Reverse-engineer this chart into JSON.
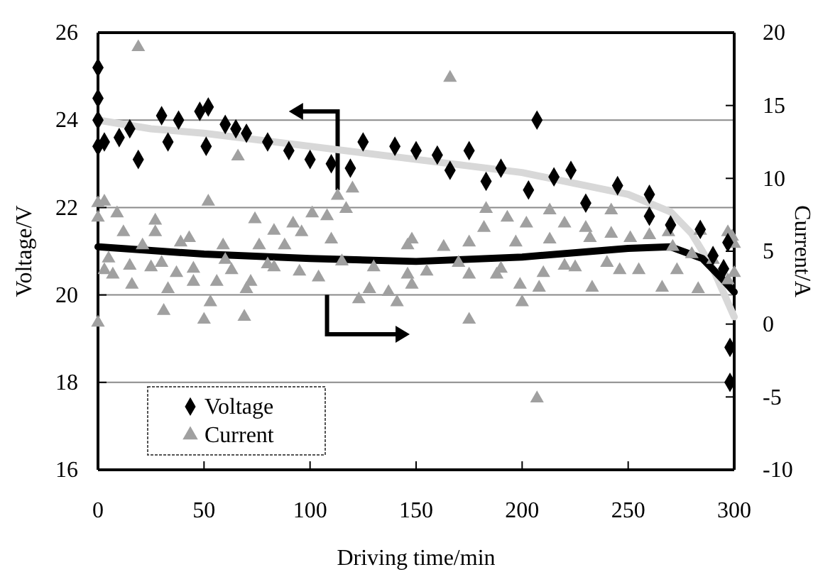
{
  "chart_data": {
    "type": "scatter",
    "xlabel": "Driving time/min",
    "ylabel": "Voltage/V",
    "y2label": "Current/A",
    "xlim": [
      0,
      300
    ],
    "xticks": [
      0,
      50,
      100,
      150,
      200,
      250,
      300
    ],
    "ylim": [
      16,
      26
    ],
    "yticks": [
      16,
      18,
      20,
      22,
      24,
      26
    ],
    "y2lim": [
      -10,
      20
    ],
    "y2ticks": [
      -10,
      -5,
      0,
      5,
      10,
      15,
      20
    ],
    "grid": "y",
    "legend": "bottom left",
    "series": [
      {
        "name": "Current",
        "marker": "triangle",
        "color": "#a0a0a0",
        "axis": "y2",
        "x": [
          0,
          0,
          0,
          3,
          9,
          52,
          27,
          74,
          66,
          101,
          113,
          120,
          108,
          92,
          96,
          117,
          3,
          7,
          16,
          25,
          33,
          31,
          37,
          45,
          50,
          53,
          56,
          63,
          70,
          69,
          72,
          83,
          104,
          123,
          128,
          137,
          148,
          141,
          146,
          175,
          188,
          199,
          200,
          208,
          220,
          233,
          246,
          266,
          273,
          283,
          297,
          183,
          193,
          202,
          213,
          220,
          230,
          242,
          242,
          251,
          260,
          269,
          284,
          297,
          148,
          163,
          175,
          182,
          197,
          213,
          232,
          271,
          21,
          39,
          43,
          59,
          76,
          88,
          83,
          110,
          146,
          12,
          27,
          19,
          166,
          207,
          175,
          300,
          300,
          299,
          5,
          15,
          30,
          45,
          60,
          80,
          95,
          115,
          130,
          155,
          170,
          190,
          210,
          225,
          240,
          255,
          280,
          290
        ],
        "values": [
          8.3,
          7.3,
          0.1,
          8.4,
          7.6,
          8.4,
          7.1,
          7.2,
          11.5,
          7.6,
          8.8,
          9.3,
          7.4,
          6.9,
          6.3,
          7.9,
          3.7,
          3.4,
          2.7,
          3.9,
          2.4,
          0.9,
          3.5,
          2.9,
          0.3,
          1.5,
          2.9,
          3.7,
          2.4,
          0.5,
          2.9,
          3.9,
          3.2,
          1.7,
          2.4,
          2.2,
          2.7,
          1.5,
          3.4,
          3.4,
          3.4,
          2.7,
          1.5,
          2.5,
          4.0,
          2.5,
          3.7,
          2.5,
          3.7,
          2.4,
          3.0,
          7.9,
          7.3,
          6.9,
          7.8,
          6.9,
          6.6,
          7.8,
          6.2,
          5.9,
          6.1,
          6.3,
          6.4,
          6.3,
          5.8,
          5.3,
          5.6,
          6.6,
          5.6,
          5.8,
          5.9,
          5.3,
          5.4,
          5.6,
          5.9,
          5.4,
          5.4,
          5.4,
          6.4,
          5.8,
          5.4,
          6.3,
          6.3,
          19.0,
          16.9,
          -5.1,
          0.3,
          5.5,
          3.5,
          6.0,
          4.5,
          4.0,
          4.2,
          3.8,
          4.4,
          4.1,
          3.6,
          4.3,
          3.9,
          3.6,
          4.2,
          3.8,
          3.5,
          3.9,
          4.2,
          3.7,
          4.8,
          4.4
        ]
      },
      {
        "name": "Voltage",
        "marker": "diamond",
        "color": "#000000",
        "x": [
          0,
          0,
          0,
          0,
          3,
          10,
          15,
          19,
          30,
          33,
          38,
          48,
          51,
          52,
          60,
          65,
          70,
          80,
          90,
          100,
          110,
          119,
          125,
          140,
          150,
          160,
          166,
          175,
          183,
          190,
          203,
          207,
          215,
          223,
          230,
          245,
          260,
          260,
          270,
          284,
          290,
          295,
          297,
          298,
          298
        ],
        "values": [
          25.2,
          24.5,
          24.0,
          23.4,
          23.5,
          23.6,
          23.8,
          23.1,
          24.1,
          23.5,
          24.0,
          24.2,
          23.4,
          24.3,
          23.9,
          23.8,
          23.7,
          23.5,
          23.3,
          23.1,
          23.0,
          22.9,
          23.5,
          23.4,
          23.3,
          23.2,
          22.85,
          23.3,
          22.6,
          22.9,
          22.4,
          24.0,
          22.7,
          22.85,
          22.1,
          22.5,
          22.3,
          21.8,
          21.6,
          21.5,
          20.9,
          20.6,
          21.2,
          18.8,
          18.0
        ]
      },
      {
        "type": "line",
        "marker": "none",
        "color": "#d8d8d8",
        "x": [
          0,
          25,
          50,
          100,
          150,
          200,
          250,
          270,
          280,
          290,
          300
        ],
        "values": [
          24.0,
          23.8,
          23.7,
          23.4,
          23.1,
          22.8,
          22.3,
          21.9,
          21.4,
          20.6,
          19.5
        ]
      },
      {
        "type": "line",
        "marker": "none",
        "color": "#000000",
        "axis": "y2",
        "x": [
          0,
          50,
          100,
          150,
          200,
          250,
          270,
          285,
          295,
          300
        ],
        "values": [
          5.3,
          4.8,
          4.5,
          4.3,
          4.6,
          5.2,
          5.3,
          4.5,
          3.0,
          2.2
        ]
      }
    ]
  }
}
